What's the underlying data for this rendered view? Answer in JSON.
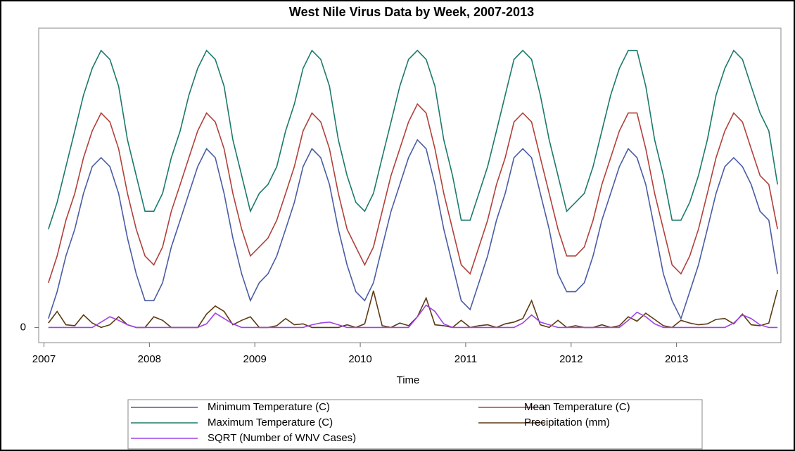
{
  "chart_data": {
    "type": "line",
    "title": "West Nile Virus Data by Week, 2007-2013",
    "xlabel": "Time",
    "x": [
      2007.042,
      2007.125,
      2007.208,
      2007.292,
      2007.375,
      2007.458,
      2007.542,
      2007.625,
      2007.708,
      2007.792,
      2007.875,
      2007.958,
      2008.042,
      2008.125,
      2008.208,
      2008.292,
      2008.375,
      2008.458,
      2008.542,
      2008.625,
      2008.708,
      2008.792,
      2008.875,
      2008.958,
      2009.042,
      2009.125,
      2009.208,
      2009.292,
      2009.375,
      2009.458,
      2009.542,
      2009.625,
      2009.708,
      2009.792,
      2009.875,
      2009.958,
      2010.042,
      2010.125,
      2010.208,
      2010.292,
      2010.375,
      2010.458,
      2010.542,
      2010.625,
      2010.708,
      2010.792,
      2010.875,
      2010.958,
      2011.042,
      2011.125,
      2011.208,
      2011.292,
      2011.375,
      2011.458,
      2011.542,
      2011.625,
      2011.708,
      2011.792,
      2011.875,
      2011.958,
      2012.042,
      2012.125,
      2012.208,
      2012.292,
      2012.375,
      2012.458,
      2012.542,
      2012.625,
      2012.708,
      2012.792,
      2012.875,
      2012.958,
      2013.042,
      2013.125,
      2013.208,
      2013.292,
      2013.375,
      2013.458,
      2013.542,
      2013.625,
      2013.708,
      2013.792,
      2013.875,
      2013.958
    ],
    "xlim": [
      2006.95,
      2013.99
    ],
    "xticks": [
      2007,
      2008,
      2009,
      2010,
      2011,
      2012,
      2013
    ],
    "ylim": [
      -1.7,
      33.5
    ],
    "yticks": [
      0
    ],
    "legend": "bottom",
    "series": [
      {
        "name": "Minimum Temperature (C)",
        "color": "#4a5ca3",
        "values": [
          1,
          4,
          8,
          11,
          15,
          18,
          19,
          18,
          15,
          10,
          6,
          3,
          3,
          5,
          9,
          12,
          15,
          18,
          20,
          19,
          15,
          10,
          6,
          3,
          5,
          6,
          8,
          11,
          14,
          18,
          20,
          19,
          16,
          11,
          7,
          4,
          3,
          5,
          9,
          13,
          16,
          19,
          21,
          20,
          16,
          11,
          7,
          3,
          2,
          5,
          8,
          12,
          15,
          19,
          20,
          19,
          15,
          11,
          6,
          4,
          4,
          5,
          8,
          12,
          15,
          18,
          20,
          19,
          16,
          11,
          6,
          3,
          1,
          4,
          7,
          11,
          15,
          18,
          19,
          18,
          16,
          13,
          12,
          6
        ]
      },
      {
        "name": "Mean Temperature (C)",
        "color": "#b1403a",
        "values": [
          5,
          8,
          12,
          15,
          19,
          22,
          24,
          23,
          20,
          15,
          11,
          8,
          7,
          9,
          13,
          16,
          19,
          22,
          24,
          23,
          20,
          15,
          11,
          8,
          9,
          10,
          12,
          15,
          18,
          22,
          24,
          23,
          20,
          15,
          11,
          9,
          7,
          9,
          13,
          17,
          20,
          23,
          25,
          24,
          20,
          15,
          11,
          7,
          6,
          9,
          12,
          16,
          19,
          23,
          24,
          23,
          19,
          15,
          11,
          8,
          8,
          9,
          12,
          16,
          19,
          22,
          24,
          24,
          20,
          15,
          11,
          7,
          6,
          8,
          11,
          15,
          19,
          22,
          24,
          23,
          20,
          17,
          16,
          11
        ]
      },
      {
        "name": "Maximum Temperature (C)",
        "color": "#1b7a6c",
        "values": [
          11,
          14,
          18,
          22,
          26,
          29,
          31,
          30,
          27,
          21,
          17,
          13,
          13,
          15,
          19,
          22,
          26,
          29,
          31,
          30,
          27,
          21,
          17,
          13,
          15,
          16,
          18,
          22,
          25,
          29,
          31,
          30,
          27,
          21,
          17,
          14,
          13,
          15,
          19,
          23,
          27,
          30,
          31,
          30,
          27,
          21,
          17,
          12,
          12,
          15,
          18,
          22,
          26,
          30,
          31,
          30,
          26,
          21,
          17,
          13,
          14,
          15,
          18,
          22,
          26,
          29,
          31,
          31,
          27,
          21,
          17,
          12,
          12,
          14,
          17,
          21,
          26,
          29,
          31,
          30,
          27,
          24,
          22,
          16
        ]
      },
      {
        "name": "Precipitation (mm)",
        "color": "#5c3a12",
        "values": [
          0.5,
          1.8,
          0.3,
          0.2,
          1.4,
          0.5,
          0,
          0.3,
          1.2,
          0.3,
          0,
          0,
          1.2,
          0.8,
          0,
          0,
          0,
          0,
          1.5,
          2.4,
          1.8,
          0.3,
          0.8,
          1.2,
          0,
          0,
          0.2,
          1.0,
          0.3,
          0.4,
          0,
          0,
          0,
          0,
          0.3,
          0,
          0.4,
          4.1,
          0.2,
          0,
          0.5,
          0.2,
          1.2,
          3.3,
          0.3,
          0.2,
          0,
          0.8,
          0,
          0.2,
          0.3,
          0,
          0.4,
          0.6,
          1.0,
          3.0,
          0.3,
          0,
          0.8,
          0,
          0.2,
          0,
          0,
          0.3,
          0,
          0.2,
          1.2,
          0.7,
          1.6,
          0.9,
          0.2,
          0,
          0.8,
          0.5,
          0.3,
          0.4,
          0.9,
          1.0,
          0.4,
          1.5,
          0.3,
          0.2,
          0.5,
          4.2
        ]
      },
      {
        "name": "SQRT (Number of WNV Cases)",
        "color": "#a142e6",
        "values": [
          0,
          0,
          0,
          0,
          0,
          0,
          0.6,
          1.2,
          0.8,
          0.3,
          0,
          0,
          0,
          0,
          0,
          0,
          0,
          0,
          0.4,
          1.6,
          1.0,
          0.4,
          0,
          0,
          0,
          0,
          0,
          0,
          0,
          0,
          0.3,
          0.5,
          0.6,
          0.3,
          0,
          0,
          0,
          0,
          0,
          0,
          0,
          0,
          1.2,
          2.5,
          1.8,
          0.4,
          0,
          0,
          0,
          0,
          0,
          0,
          0,
          0,
          0.5,
          1.4,
          0.6,
          0.3,
          0,
          0,
          0,
          0,
          0,
          0,
          0,
          0,
          0.8,
          1.7,
          1.2,
          0.4,
          0,
          0,
          0,
          0,
          0,
          0,
          0,
          0,
          0.5,
          1.4,
          1.0,
          0.3,
          0,
          0
        ]
      }
    ]
  }
}
